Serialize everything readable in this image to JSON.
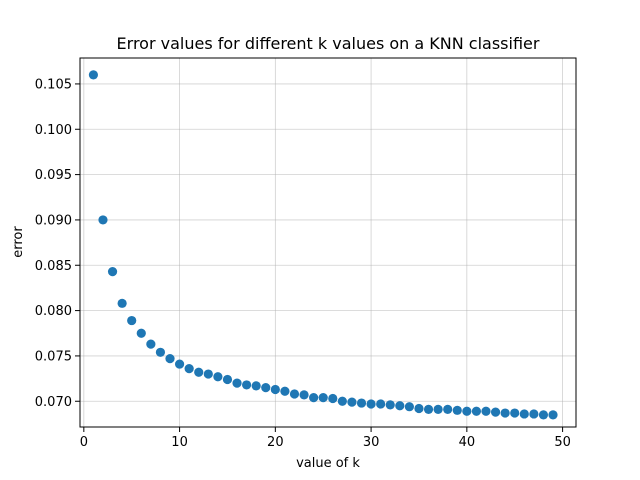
{
  "chart_data": {
    "type": "scatter",
    "title": "Error values for different k values on a KNN classifier",
    "xlabel": "value of k",
    "ylabel": "error",
    "xlim": [
      -0.4,
      51.4
    ],
    "ylim": [
      0.06716,
      0.10786
    ],
    "xticks": [
      0,
      10,
      20,
      30,
      40,
      50
    ],
    "yticks": [
      0.07,
      0.075,
      0.08,
      0.085,
      0.09,
      0.095,
      0.1,
      0.105
    ],
    "grid": true,
    "marker_color": "#1f77b4",
    "series": [
      {
        "x": [
          1,
          2,
          3,
          4,
          5,
          6,
          7,
          8,
          9,
          10,
          11,
          12,
          13,
          14,
          15,
          16,
          17,
          18,
          19,
          20,
          21,
          22,
          23,
          24,
          25,
          26,
          27,
          28,
          29,
          30,
          31,
          32,
          33,
          34,
          35,
          36,
          37,
          38,
          39,
          40,
          41,
          42,
          43,
          44,
          45,
          46,
          47,
          48,
          49
        ],
        "values": [
          0.106,
          0.09,
          0.0843,
          0.0808,
          0.0789,
          0.0775,
          0.0763,
          0.0754,
          0.0747,
          0.0741,
          0.0736,
          0.0732,
          0.073,
          0.0727,
          0.0724,
          0.072,
          0.0718,
          0.0717,
          0.0715,
          0.0713,
          0.0711,
          0.0708,
          0.0707,
          0.0704,
          0.0704,
          0.0703,
          0.07,
          0.0699,
          0.0698,
          0.0697,
          0.0697,
          0.0696,
          0.0695,
          0.0694,
          0.0692,
          0.0691,
          0.0691,
          0.0691,
          0.069,
          0.0689,
          0.0689,
          0.0689,
          0.0688,
          0.0687,
          0.0687,
          0.0686,
          0.0686,
          0.0685,
          0.0685
        ]
      }
    ]
  }
}
